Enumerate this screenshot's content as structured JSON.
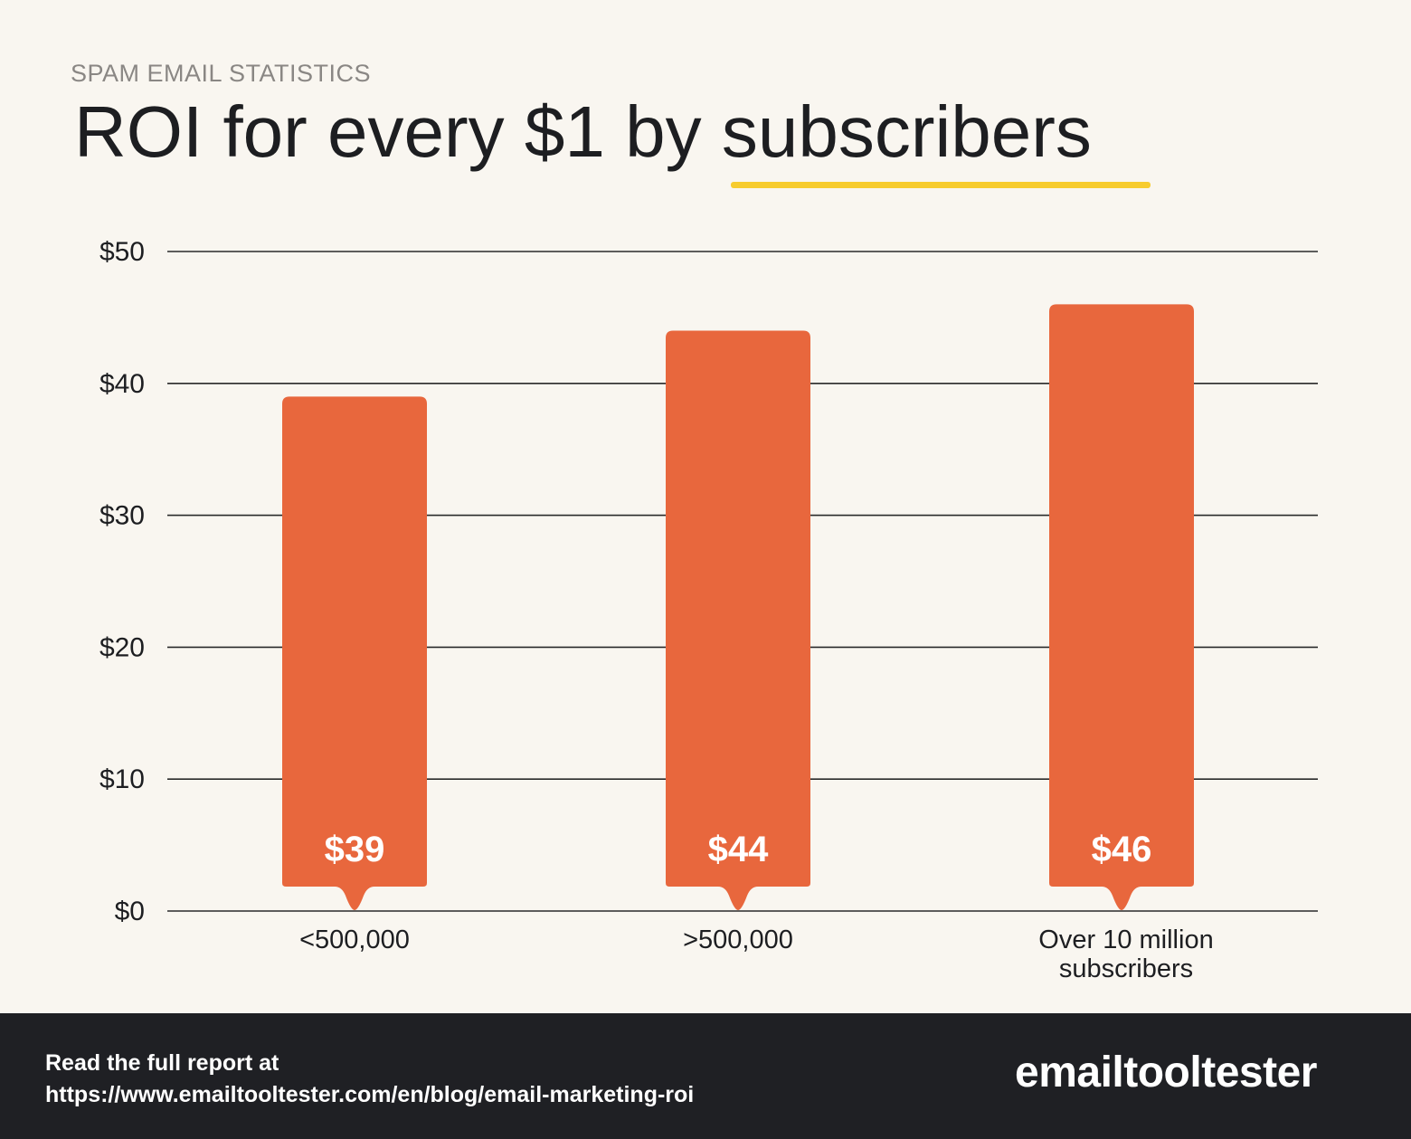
{
  "header": {
    "eyebrow": "SPAM EMAIL STATISTICS",
    "title_main": "ROI for every $1 by ",
    "title_highlight": "subscribers"
  },
  "colors": {
    "background": "#f9f6f0",
    "bar": "#e8673d",
    "underline": "#f7cc2e",
    "footer": "#1f2024",
    "text": "#1d1e21"
  },
  "chart_data": {
    "type": "bar",
    "categories": [
      "<500,000",
      ">500,000",
      "Over 10 million subscribers"
    ],
    "category_lines": [
      [
        "<500,000"
      ],
      [
        ">500,000"
      ],
      [
        "Over 10 million",
        "subscribers"
      ]
    ],
    "values": [
      39,
      44,
      46
    ],
    "value_labels": [
      "$39",
      "$44",
      "$46"
    ],
    "y_ticks": [
      0,
      10,
      20,
      30,
      40,
      50
    ],
    "y_tick_labels": [
      "$0",
      "$10",
      "$20",
      "$30",
      "$40",
      "$50"
    ],
    "ylim": [
      0,
      50
    ],
    "grid": true
  },
  "footer": {
    "line1": "Read the full report at",
    "line2": "https://www.emailtooltester.com/en/blog/email-marketing-roi",
    "logo_text": "emailtooltester"
  }
}
